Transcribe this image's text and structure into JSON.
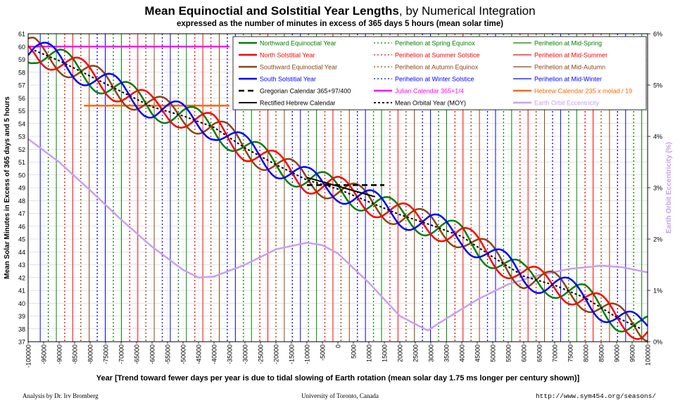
{
  "header": {
    "title_bold": "Mean Equinoctial and Solstitial Year Lengths",
    "title_rest": ", by Numerical Integration",
    "subtitle": "expressed as the number of minutes in excess of 365 days 5 hours (mean solar time)"
  },
  "footer": {
    "left": "Analysis by Dr. Irv Bromberg",
    "center": "University of Toronto, Canada",
    "right": "http://www.sym454.org/seasons/"
  },
  "chart_data": {
    "type": "line",
    "title": "Mean Equinoctial and Solstitial Year Lengths, by Numerical Integration",
    "subtitle": "expressed as the number of minutes in excess of 365 days 5 hours (mean solar time)",
    "xlabel": "Year [Trend toward fewer days per year is due to tidal slowing of Earth rotation (mean solar day 1.75 ms longer per century shown)]",
    "ylabel": "Mean Solar Minutes in Excess of 365 days and 5 hours",
    "y2label": "Earth Orbit Eccentricity (%)",
    "xlim": [
      -100000,
      100000
    ],
    "ylim": [
      37,
      61
    ],
    "y2lim": [
      0,
      6
    ],
    "xticks": [
      -100000,
      -95000,
      -90000,
      -85000,
      -80000,
      -75000,
      -70000,
      -65000,
      -60000,
      -55000,
      -50000,
      -45000,
      -40000,
      -35000,
      -30000,
      -25000,
      -20000,
      -15000,
      -10000,
      -5000,
      0,
      5000,
      10000,
      15000,
      20000,
      25000,
      30000,
      35000,
      40000,
      45000,
      50000,
      55000,
      60000,
      65000,
      70000,
      75000,
      80000,
      85000,
      90000,
      95000,
      100000
    ],
    "yticks": [
      37,
      38,
      39,
      40,
      41,
      42,
      43,
      44,
      45,
      46,
      47,
      48,
      49,
      50,
      51,
      52,
      53,
      54,
      55,
      56,
      57,
      58,
      59,
      60,
      61
    ],
    "y2ticks": [
      "0%",
      "1%",
      "2%",
      "3%",
      "4%",
      "5%",
      "6%"
    ],
    "grid": true,
    "legend_position": "top-right",
    "legend": [
      {
        "label": "Northward Equinoctial Year",
        "color": "#008000",
        "dash": "solid",
        "width": 2.5
      },
      {
        "label": "Perihelion at Spring Equinox",
        "color": "#008000",
        "dash": "dotted",
        "width": 1.2
      },
      {
        "label": "Perihelion at Mid-Spring",
        "color": "#008000",
        "dash": "solid",
        "width": 1.2
      },
      {
        "label": "North Solstitial Year",
        "color": "#ff0000",
        "dash": "solid",
        "width": 2.5
      },
      {
        "label": "Perihelion at Summer Solstice",
        "color": "#ff0000",
        "dash": "dotted",
        "width": 1.2
      },
      {
        "label": "Perihelion at Mid-Summer",
        "color": "#ff0000",
        "dash": "solid",
        "width": 1.2
      },
      {
        "label": "Southward Equinoctial Year",
        "color": "#8b4513",
        "dash": "solid",
        "width": 2.5
      },
      {
        "label": "Perihelion at Autumn Equinox",
        "color": "#8b4513",
        "dash": "dotted",
        "width": 1.2
      },
      {
        "label": "Perihelion at Mid-Autumn",
        "color": "#8b4513",
        "dash": "solid",
        "width": 1.2
      },
      {
        "label": "South Solstitial Year",
        "color": "#0000ff",
        "dash": "solid",
        "width": 2.5
      },
      {
        "label": "Perihelion at Winter Solstice",
        "color": "#0000ff",
        "dash": "dotted",
        "width": 1.2
      },
      {
        "label": "Perihelion at Mid-Winter",
        "color": "#0000ff",
        "dash": "solid",
        "width": 1.2
      },
      {
        "label": "Gregorian Calendar 365+97/400",
        "color": "#000000",
        "dash": "dashed",
        "width": 2.5
      },
      {
        "label": "Julian Calendar 365+1/4",
        "color": "#ff00ff",
        "dash": "solid",
        "width": 2.5
      },
      {
        "label": "Hebrew Calendar 235 x molad / 19",
        "color": "#ff6600",
        "dash": "solid",
        "width": 2.5
      },
      {
        "label": "Rectified Hebrew Calendar",
        "color": "#000000",
        "dash": "solid",
        "width": 2
      },
      {
        "label": "Mean Orbital Year (MOY)",
        "color": "#000000",
        "dash": "dashdot",
        "width": 2
      },
      {
        "label": "Earth Orbit Eccentricity",
        "color": "#c8a0f0",
        "dash": "solid",
        "width": 2.5
      }
    ],
    "oscillation_period": 21000,
    "series": [
      {
        "name": "Mean Orbital Year (MOY)",
        "color": "#000000",
        "x": [
          -98000,
          -90000,
          -80000,
          -70000,
          -60000,
          -50000,
          -40000,
          -30000,
          -20000,
          -10000,
          0,
          10000,
          20000,
          30000,
          40000,
          50000,
          60000,
          70000,
          80000,
          90000,
          98000
        ],
        "y": [
          59.7,
          58.9,
          57.7,
          56.5,
          55.3,
          54.6,
          53.7,
          52.1,
          50.8,
          49.6,
          48.9,
          47.9,
          46.9,
          46.1,
          45.2,
          43.6,
          42.1,
          41.4,
          40.4,
          38.9,
          38.0
        ]
      },
      {
        "name": "Earth Orbit Eccentricity",
        "color": "#c8a0f0",
        "axis": "y2",
        "x": [
          -100000,
          -90000,
          -80000,
          -70000,
          -60000,
          -50000,
          -45000,
          -40000,
          -30000,
          -20000,
          -10000,
          -5000,
          0,
          10000,
          20000,
          29000,
          35000,
          45000,
          55000,
          65000,
          75000,
          85000,
          92000,
          100000
        ],
        "y": [
          3.95,
          3.5,
          2.95,
          2.38,
          1.85,
          1.4,
          1.25,
          1.27,
          1.5,
          1.8,
          1.93,
          1.88,
          1.72,
          1.15,
          0.5,
          0.22,
          0.45,
          0.82,
          1.12,
          1.3,
          1.42,
          1.48,
          1.45,
          1.35
        ]
      },
      {
        "name": "Northward Equinoctial Year",
        "color": "#008000",
        "amplitude": 1.0,
        "peak_year": -88200
      },
      {
        "name": "North Solstitial Year",
        "color": "#ff0000",
        "amplitude": 1.0,
        "peak_year": -83000
      },
      {
        "name": "Southward Equinoctial Year",
        "color": "#8b4513",
        "amplitude": 1.0,
        "peak_year": -77700
      },
      {
        "name": "South Solstitial Year",
        "color": "#0000ff",
        "amplitude": 1.0,
        "peak_year": -93500
      },
      {
        "name": "Julian Calendar 365+1/4",
        "color": "#ff00ff",
        "x": [
          -100000,
          -35000
        ],
        "y": [
          60.0,
          60.0
        ]
      },
      {
        "name": "Hebrew Calendar 235 x molad / 19",
        "color": "#ff6600",
        "x": [
          -82000,
          -35000
        ],
        "y": [
          55.4,
          55.4
        ]
      },
      {
        "name": "Gregorian Calendar 365+97/400",
        "color": "#000000",
        "x": [
          -10000,
          15000
        ],
        "y": [
          49.2,
          49.2
        ]
      },
      {
        "name": "Rectified Hebrew Calendar",
        "color": "#000000",
        "x": [
          -10000,
          12000
        ],
        "y": [
          49.8,
          48.3
        ]
      }
    ],
    "perihelion_markers": {
      "note": "Vertical lines mark perihelion at each seasonal point; spacing follows the oscillation period",
      "sequence": [
        {
          "name": "Perihelion at Spring Equinox",
          "color": "#008000",
          "dotted": true,
          "base": -93500
        },
        {
          "name": "Perihelion at Mid-Spring",
          "color": "#008000",
          "dotted": false,
          "base": -90900
        },
        {
          "name": "Perihelion at Summer Solstice",
          "color": "#ff0000",
          "dotted": true,
          "base": -88200
        },
        {
          "name": "Perihelion at Mid-Summer",
          "color": "#ff0000",
          "dotted": false,
          "base": -85600
        },
        {
          "name": "Perihelion at Autumn Equinox",
          "color": "#8b4513",
          "dotted": true,
          "base": -83000
        },
        {
          "name": "Perihelion at Mid-Autumn",
          "color": "#8b4513",
          "dotted": false,
          "base": -80300
        },
        {
          "name": "Perihelion at Winter Solstice",
          "color": "#0000ff",
          "dotted": true,
          "base": -77700
        },
        {
          "name": "Perihelion at Mid-Winter",
          "color": "#0000ff",
          "dotted": false,
          "base": -96100
        }
      ]
    }
  }
}
